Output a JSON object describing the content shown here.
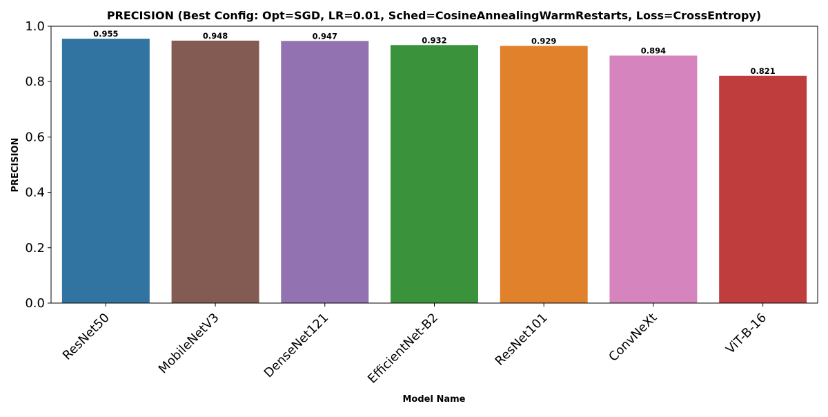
{
  "chart_data": {
    "type": "bar",
    "title": "PRECISION (Best Config: Opt=SGD, LR=0.01, Sched=CosineAnnealingWarmRestarts, Loss=CrossEntropy)",
    "xlabel": "Model Name",
    "ylabel": "PRECISION",
    "categories": [
      "ResNet50",
      "MobileNetV3",
      "DenseNet121",
      "EfficientNet-B2",
      "ResNet101",
      "ConvNeXt",
      "ViT-B-16"
    ],
    "values": [
      0.955,
      0.948,
      0.947,
      0.932,
      0.929,
      0.894,
      0.821
    ],
    "value_labels": [
      "0.955",
      "0.948",
      "0.947",
      "0.932",
      "0.929",
      "0.894",
      "0.821"
    ],
    "colors": [
      "#3274a1",
      "#845b53",
      "#9372b2",
      "#3a923a",
      "#e1812c",
      "#d684bd",
      "#c03d3e"
    ],
    "ylim": [
      0,
      1.0
    ],
    "yticks": [
      0.0,
      0.2,
      0.4,
      0.6,
      0.8,
      1.0
    ],
    "ytick_labels": [
      "0.0",
      "0.2",
      "0.4",
      "0.6",
      "0.8",
      "1.0"
    ],
    "grid": false,
    "legend": "none"
  }
}
